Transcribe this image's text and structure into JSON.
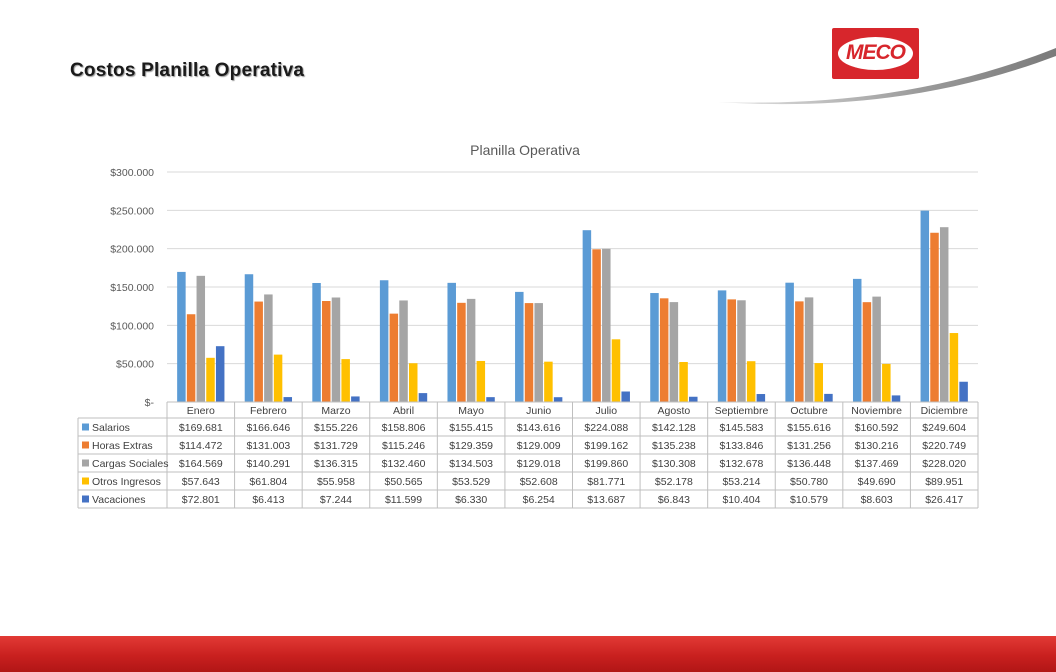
{
  "slide": {
    "title": "Costos Planilla Operativa"
  },
  "logo": {
    "text": "MECO"
  },
  "colors": {
    "brand_red": "#d7262c",
    "bar_bottom": "#c9201f"
  },
  "chart_data": {
    "type": "bar",
    "title": "Planilla Operativa",
    "categories": [
      "Enero",
      "Febrero",
      "Marzo",
      "Abril",
      "Mayo",
      "Junio",
      "Julio",
      "Agosto",
      "Septiembre",
      "Octubre",
      "Noviembre",
      "Diciembre"
    ],
    "ylim": [
      0,
      300000
    ],
    "ytick_labels": [
      "$300.000",
      "$250.000",
      "$200.000",
      "$150.000",
      "$100.000",
      "$50.000",
      "$-"
    ],
    "yticks": [
      300000,
      250000,
      200000,
      150000,
      100000,
      50000,
      0
    ],
    "grid": true,
    "legend": "data-table",
    "series": [
      {
        "name": "Salarios",
        "color": "#5b9bd5",
        "values": [
          169681,
          166646,
          155226,
          158806,
          155415,
          143616,
          224088,
          142128,
          145583,
          155616,
          160592,
          249604
        ],
        "labels": [
          "$169.681",
          "$166.646",
          "$155.226",
          "$158.806",
          "$155.415",
          "$143.616",
          "$224.088",
          "$142.128",
          "$145.583",
          "$155.616",
          "$160.592",
          "$249.604"
        ]
      },
      {
        "name": "Horas Extras",
        "color": "#ed7d31",
        "values": [
          114472,
          131003,
          131729,
          115246,
          129359,
          129009,
          199162,
          135238,
          133846,
          131256,
          130216,
          220749
        ],
        "labels": [
          "$114.472",
          "$131.003",
          "$131.729",
          "$115.246",
          "$129.359",
          "$129.009",
          "$199.162",
          "$135.238",
          "$133.846",
          "$131.256",
          "$130.216",
          "$220.749"
        ]
      },
      {
        "name": "Cargas Sociales",
        "color": "#a5a5a5",
        "values": [
          164569,
          140291,
          136315,
          132460,
          134503,
          129018,
          199860,
          130308,
          132678,
          136448,
          137469,
          228020
        ],
        "labels": [
          "$164.569",
          "$140.291",
          "$136.315",
          "$132.460",
          "$134.503",
          "$129.018",
          "$199.860",
          "$130.308",
          "$132.678",
          "$136.448",
          "$137.469",
          "$228.020"
        ]
      },
      {
        "name": "Otros Ingresos",
        "color": "#ffc000",
        "values": [
          57643,
          61804,
          55958,
          50565,
          53529,
          52608,
          81771,
          52178,
          53214,
          50780,
          49690,
          89951
        ],
        "labels": [
          "$57.643",
          "$61.804",
          "$55.958",
          "$50.565",
          "$53.529",
          "$52.608",
          "$81.771",
          "$52.178",
          "$53.214",
          "$50.780",
          "$49.690",
          "$89.951"
        ]
      },
      {
        "name": "Vacaciones",
        "color": "#4472c4",
        "values": [
          72801,
          6413,
          7244,
          11599,
          6330,
          6254,
          13687,
          6843,
          10404,
          10579,
          8603,
          26417
        ],
        "labels": [
          "$72.801",
          "$6.413",
          "$7.244",
          "$11.599",
          "$6.330",
          "$6.254",
          "$13.687",
          "$6.843",
          "$10.404",
          "$10.579",
          "$8.603",
          "$26.417"
        ]
      }
    ]
  }
}
